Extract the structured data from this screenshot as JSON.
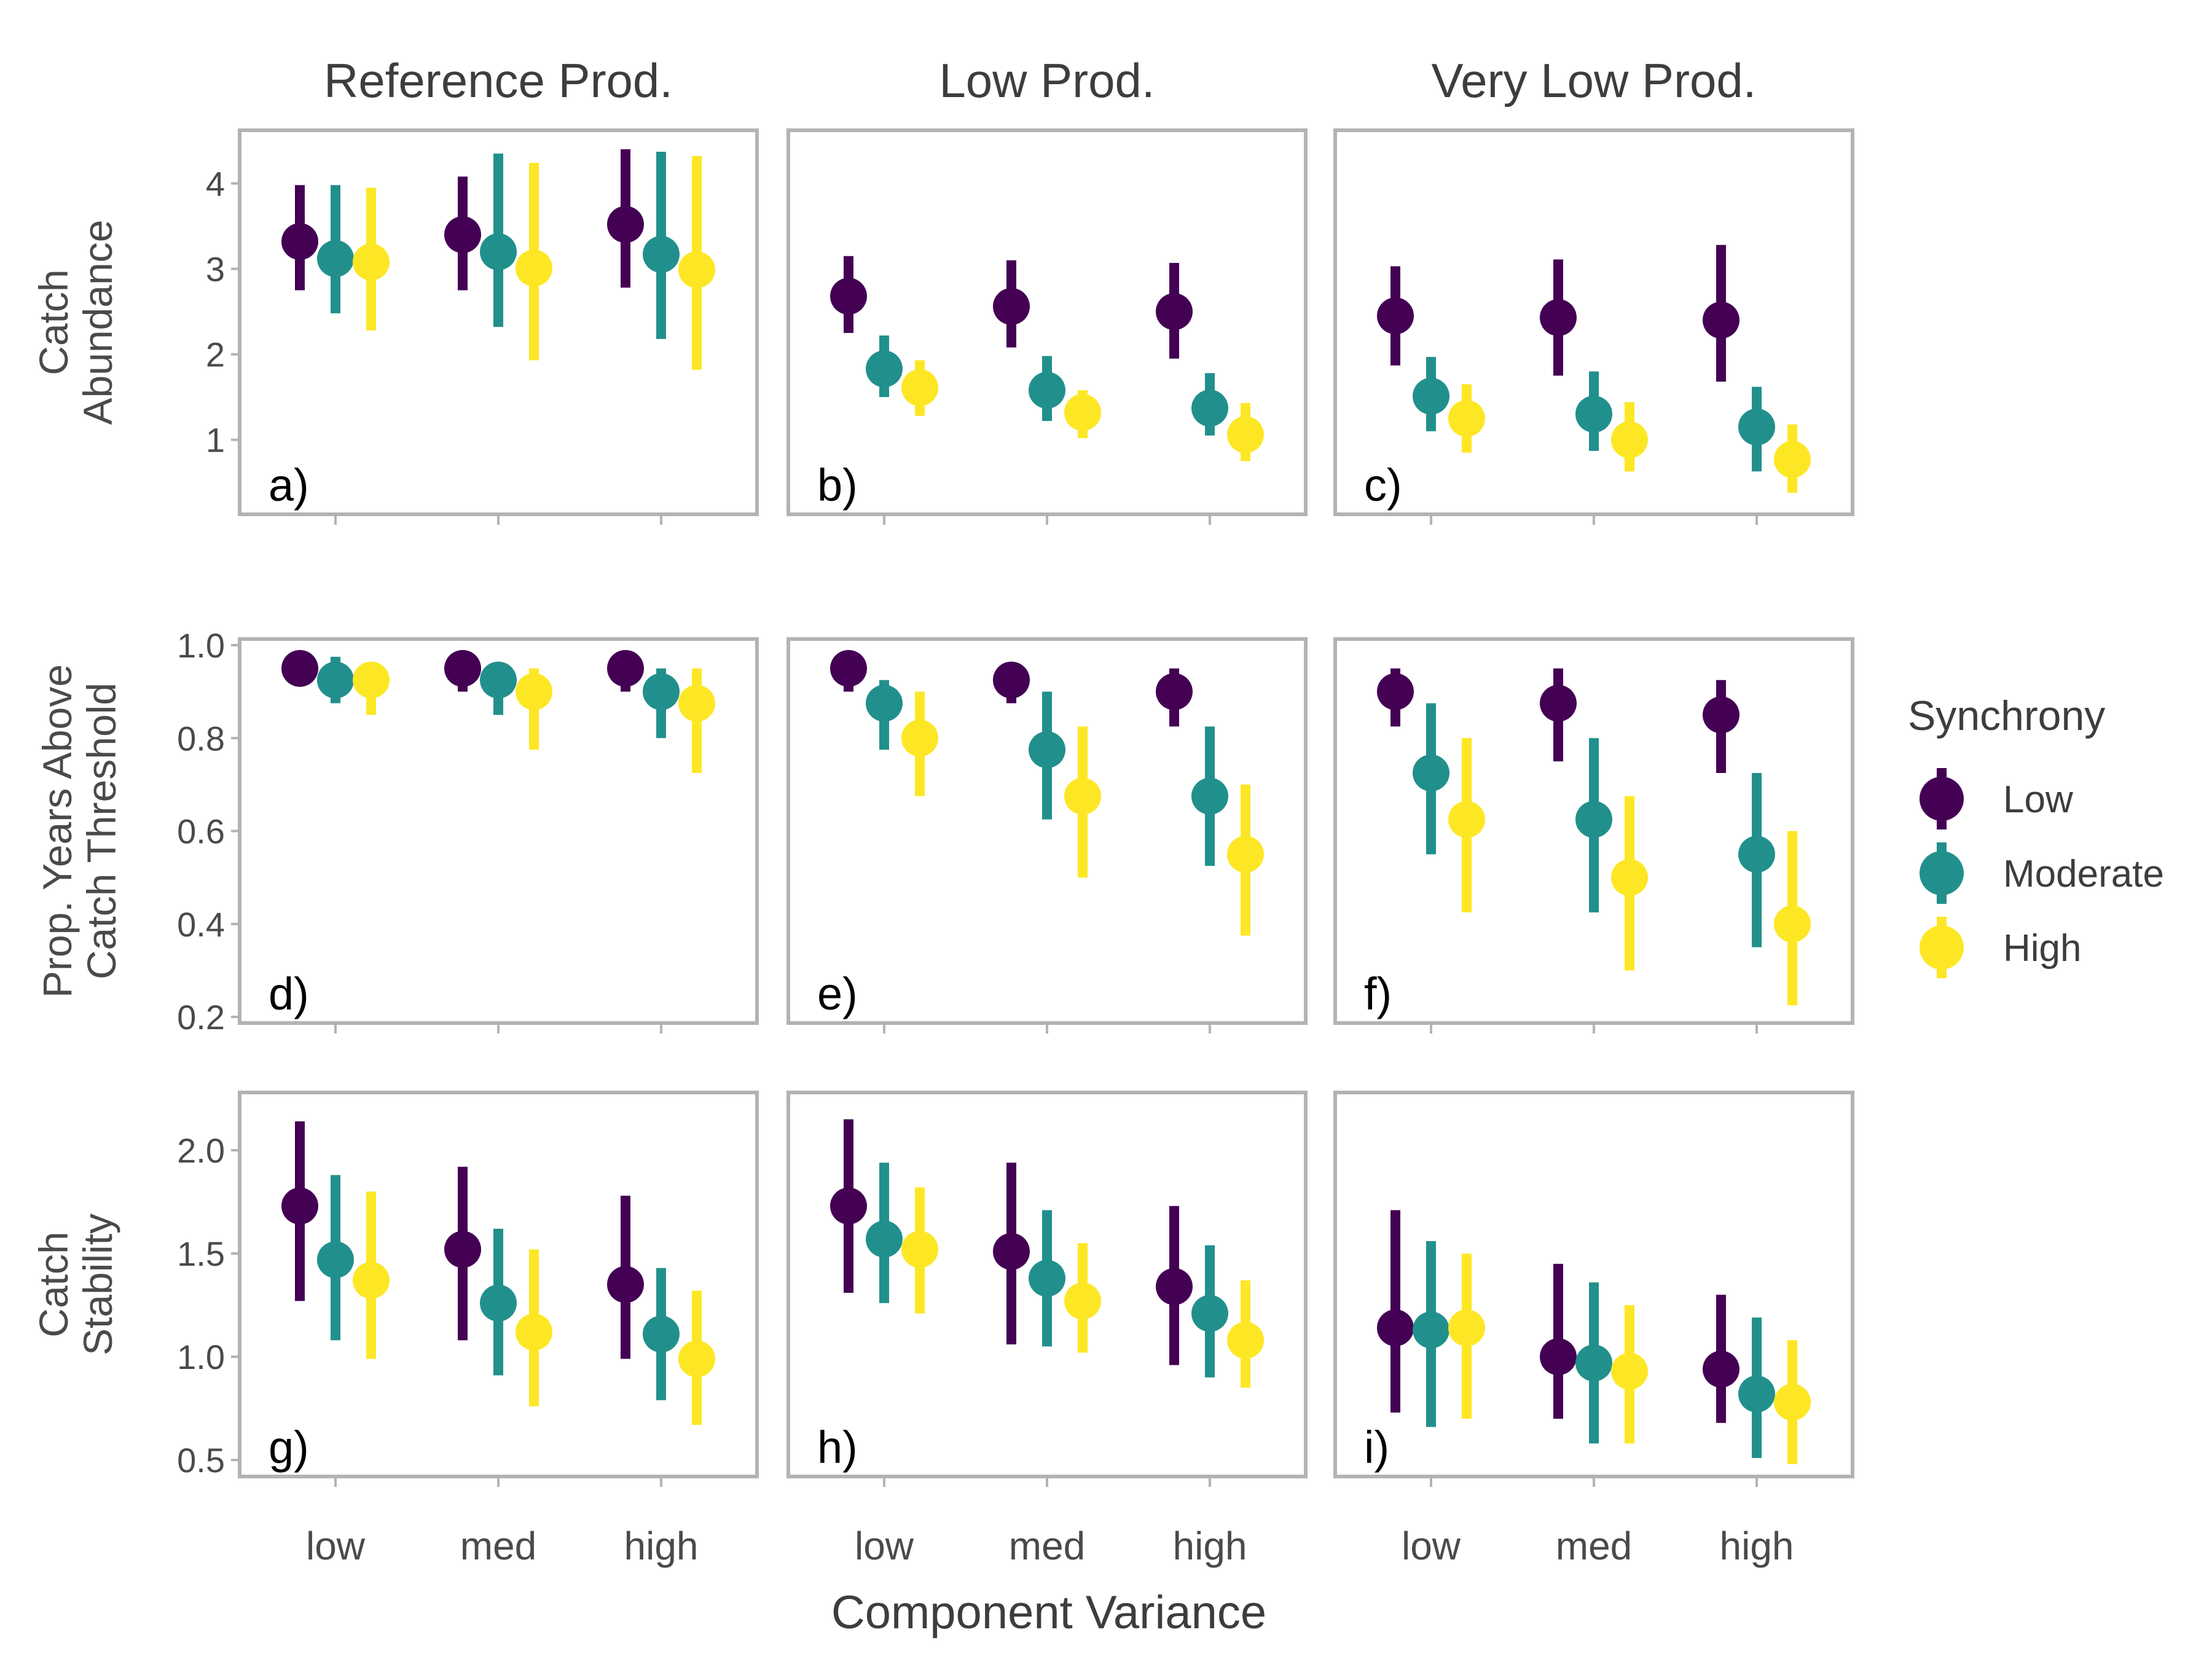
{
  "colors": {
    "Low": "#440154",
    "Moderate": "#21908C",
    "High": "#FDE725",
    "panel_border": "#b3b3b3",
    "tick_mark": "#b3b3b3"
  },
  "chart_data": {
    "type": "pointrange",
    "facet_columns": [
      "Reference Prod.",
      "Low Prod.",
      "Very Low Prod."
    ],
    "categories": [
      "low",
      "med",
      "high"
    ],
    "xlabel": "Component Variance",
    "legend": {
      "title": "Synchrony",
      "position": "right",
      "entries": [
        "Low",
        "Moderate",
        "High"
      ]
    },
    "rows": [
      {
        "ylabel_lines": [
          "Catch",
          "Abundance"
        ],
        "ylim": [
          0.2,
          4.55
        ],
        "yticks": [
          1,
          2,
          3,
          4
        ],
        "tick_labels": [
          "1",
          "2",
          "3",
          "4"
        ],
        "panels": [
          {
            "label": "a)",
            "series": [
              {
                "name": "Low",
                "mid": [
                  3.32,
                  3.4,
                  3.52
                ],
                "lo": [
                  2.75,
                  2.75,
                  2.78
                ],
                "hi": [
                  3.98,
                  4.08,
                  4.4
                ]
              },
              {
                "name": "Moderate",
                "mid": [
                  3.12,
                  3.2,
                  3.17
                ],
                "lo": [
                  2.48,
                  2.32,
                  2.18
                ],
                "hi": [
                  3.98,
                  4.35,
                  4.37
                ]
              },
              {
                "name": "High",
                "mid": [
                  3.08,
                  3.01,
                  2.99
                ],
                "lo": [
                  2.28,
                  1.93,
                  1.82
                ],
                "hi": [
                  3.95,
                  4.24,
                  4.32
                ]
              }
            ]
          },
          {
            "label": "b)",
            "series": [
              {
                "name": "Low",
                "mid": [
                  2.68,
                  2.56,
                  2.5
                ],
                "lo": [
                  2.25,
                  2.08,
                  1.95
                ],
                "hi": [
                  3.15,
                  3.1,
                  3.07
                ]
              },
              {
                "name": "Moderate",
                "mid": [
                  1.83,
                  1.58,
                  1.37
                ],
                "lo": [
                  1.5,
                  1.22,
                  1.05
                ],
                "hi": [
                  2.22,
                  1.98,
                  1.78
                ]
              },
              {
                "name": "High",
                "mid": [
                  1.61,
                  1.32,
                  1.06
                ],
                "lo": [
                  1.28,
                  1.02,
                  0.75
                ],
                "hi": [
                  1.93,
                  1.58,
                  1.43
                ]
              }
            ]
          },
          {
            "label": "c)",
            "series": [
              {
                "name": "Low",
                "mid": [
                  2.45,
                  2.43,
                  2.4
                ],
                "lo": [
                  1.87,
                  1.75,
                  1.68
                ],
                "hi": [
                  3.03,
                  3.11,
                  3.28
                ]
              },
              {
                "name": "Moderate",
                "mid": [
                  1.51,
                  1.3,
                  1.15
                ],
                "lo": [
                  1.1,
                  0.87,
                  0.63
                ],
                "hi": [
                  1.97,
                  1.8,
                  1.62
                ]
              },
              {
                "name": "High",
                "mid": [
                  1.25,
                  1.0,
                  0.77
                ],
                "lo": [
                  0.85,
                  0.63,
                  0.38
                ],
                "hi": [
                  1.65,
                  1.44,
                  1.18
                ]
              }
            ]
          }
        ]
      },
      {
        "ylabel_lines": [
          "Prop. Years Above",
          "Catch Threshold"
        ],
        "ylim": [
          0.2,
          1.0
        ],
        "yticks": [
          0.2,
          0.4,
          0.6,
          0.8,
          1.0
        ],
        "tick_labels": [
          "0.2",
          "0.4",
          "0.6",
          "0.8",
          "1.0"
        ],
        "panels": [
          {
            "label": "d)",
            "series": [
              {
                "name": "Low",
                "mid": [
                  0.95,
                  0.95,
                  0.95
                ],
                "lo": [
                  0.925,
                  0.9,
                  0.9
                ],
                "hi": [
                  0.975,
                  0.975,
                  0.975
                ]
              },
              {
                "name": "Moderate",
                "mid": [
                  0.925,
                  0.925,
                  0.9
                ],
                "lo": [
                  0.875,
                  0.85,
                  0.8
                ],
                "hi": [
                  0.975,
                  0.95,
                  0.95
                ]
              },
              {
                "name": "High",
                "mid": [
                  0.925,
                  0.9,
                  0.875
                ],
                "lo": [
                  0.85,
                  0.775,
                  0.725
                ],
                "hi": [
                  0.95,
                  0.95,
                  0.95
                ]
              }
            ]
          },
          {
            "label": "e)",
            "series": [
              {
                "name": "Low",
                "mid": [
                  0.95,
                  0.925,
                  0.9
                ],
                "lo": [
                  0.9,
                  0.875,
                  0.825
                ],
                "hi": [
                  0.975,
                  0.95,
                  0.95
                ]
              },
              {
                "name": "Moderate",
                "mid": [
                  0.875,
                  0.775,
                  0.675
                ],
                "lo": [
                  0.775,
                  0.625,
                  0.525
                ],
                "hi": [
                  0.925,
                  0.9,
                  0.825
                ]
              },
              {
                "name": "High",
                "mid": [
                  0.8,
                  0.675,
                  0.55
                ],
                "lo": [
                  0.675,
                  0.5,
                  0.375
                ],
                "hi": [
                  0.9,
                  0.825,
                  0.7
                ]
              }
            ]
          },
          {
            "label": "f)",
            "series": [
              {
                "name": "Low",
                "mid": [
                  0.9,
                  0.875,
                  0.85
                ],
                "lo": [
                  0.825,
                  0.75,
                  0.725
                ],
                "hi": [
                  0.95,
                  0.95,
                  0.925
                ]
              },
              {
                "name": "Moderate",
                "mid": [
                  0.725,
                  0.625,
                  0.55
                ],
                "lo": [
                  0.55,
                  0.425,
                  0.35
                ],
                "hi": [
                  0.875,
                  0.8,
                  0.725
                ]
              },
              {
                "name": "High",
                "mid": [
                  0.625,
                  0.5,
                  0.4
                ],
                "lo": [
                  0.425,
                  0.3,
                  0.225
                ],
                "hi": [
                  0.8,
                  0.675,
                  0.6
                ]
              }
            ]
          }
        ]
      },
      {
        "ylabel_lines": [
          "Catch",
          "Stability"
        ],
        "ylim": [
          0.45,
          2.25
        ],
        "yticks": [
          0.5,
          1.0,
          1.5,
          2.0
        ],
        "tick_labels": [
          "0.5",
          "1.0",
          "1.5",
          "2.0"
        ],
        "panels": [
          {
            "label": "g)",
            "series": [
              {
                "name": "Low",
                "mid": [
                  1.73,
                  1.52,
                  1.35
                ],
                "lo": [
                  1.27,
                  1.08,
                  0.99
                ],
                "hi": [
                  2.14,
                  1.92,
                  1.78
                ]
              },
              {
                "name": "Moderate",
                "mid": [
                  1.47,
                  1.26,
                  1.11
                ],
                "lo": [
                  1.08,
                  0.91,
                  0.79
                ],
                "hi": [
                  1.88,
                  1.62,
                  1.43
                ]
              },
              {
                "name": "High",
                "mid": [
                  1.37,
                  1.12,
                  0.99
                ],
                "lo": [
                  0.99,
                  0.76,
                  0.67
                ],
                "hi": [
                  1.8,
                  1.52,
                  1.32
                ]
              }
            ]
          },
          {
            "label": "h)",
            "series": [
              {
                "name": "Low",
                "mid": [
                  1.73,
                  1.51,
                  1.34
                ],
                "lo": [
                  1.31,
                  1.06,
                  0.96
                ],
                "hi": [
                  2.15,
                  1.94,
                  1.73
                ]
              },
              {
                "name": "Moderate",
                "mid": [
                  1.57,
                  1.38,
                  1.21
                ],
                "lo": [
                  1.26,
                  1.05,
                  0.9
                ],
                "hi": [
                  1.94,
                  1.71,
                  1.54
                ]
              },
              {
                "name": "High",
                "mid": [
                  1.52,
                  1.27,
                  1.08
                ],
                "lo": [
                  1.21,
                  1.02,
                  0.85
                ],
                "hi": [
                  1.82,
                  1.55,
                  1.37
                ]
              }
            ]
          },
          {
            "label": "i)",
            "series": [
              {
                "name": "Low",
                "mid": [
                  1.14,
                  1.0,
                  0.94
                ],
                "lo": [
                  0.73,
                  0.7,
                  0.68
                ],
                "hi": [
                  1.71,
                  1.45,
                  1.3
                ]
              },
              {
                "name": "Moderate",
                "mid": [
                  1.13,
                  0.97,
                  0.82
                ],
                "lo": [
                  0.66,
                  0.58,
                  0.51
                ],
                "hi": [
                  1.56,
                  1.36,
                  1.19
                ]
              },
              {
                "name": "High",
                "mid": [
                  1.14,
                  0.93,
                  0.78
                ],
                "lo": [
                  0.7,
                  0.58,
                  0.48
                ],
                "hi": [
                  1.5,
                  1.25,
                  1.08
                ]
              }
            ]
          }
        ]
      }
    ]
  }
}
